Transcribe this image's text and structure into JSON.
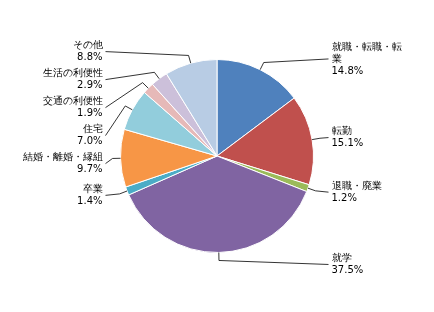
{
  "chart_data": {
    "type": "pie",
    "categories": [
      "就職・転職・転\n業",
      "転勤",
      "退職・廃業",
      "就学",
      "卒業",
      "結婚・離婚・縁組",
      "住宅",
      "交通の利便性",
      "生活の利便性",
      "その他"
    ],
    "values": [
      14.8,
      15.1,
      1.2,
      37.5,
      1.4,
      9.7,
      7.0,
      1.9,
      2.9,
      8.8
    ],
    "value_labels": [
      "14.8%",
      "15.1%",
      "1.2%",
      "37.5%",
      "1.4%",
      "9.7%",
      "7.0%",
      "1.9%",
      "2.9%",
      "8.8%"
    ],
    "colors": [
      "#4F81BD",
      "#C0504D",
      "#9BBB59",
      "#8064A2",
      "#4BACC6",
      "#F79646",
      "#92CDDC",
      "#E6B9B8",
      "#CCC0DA",
      "#B8CCE4"
    ],
    "data_labels": true
  }
}
